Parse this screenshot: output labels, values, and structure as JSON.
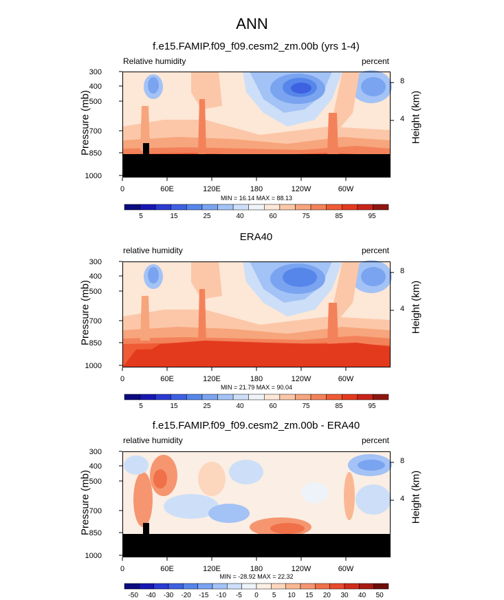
{
  "main_title": "ANN",
  "colors": {
    "rh": [
      "#0b0b7f",
      "#1717b3",
      "#2b3bd1",
      "#3d61e0",
      "#5686ea",
      "#7aa4f0",
      "#a3c2f6",
      "#cddff8",
      "#f0f4f8",
      "#fde7d6",
      "#fbc7a8",
      "#f7a57c",
      "#f3825a",
      "#ee5b35",
      "#e33a1e",
      "#c8241a",
      "#8d1710"
    ],
    "diff": [
      "#0b0b7f",
      "#1717b3",
      "#2b3bd1",
      "#3d61e0",
      "#5686ea",
      "#7aa4f0",
      "#a3c2f6",
      "#cddff8",
      "#eef3fa",
      "#fbeee4",
      "#fcd6bd",
      "#f9b893",
      "#f59670",
      "#ef7049",
      "#e74b2c",
      "#cf2d1c",
      "#a51b13",
      "#6b0e0a"
    ]
  },
  "chart_data": [
    {
      "type": "heatmap",
      "title": "f.e15.FAMIP.f09_f09.cesm2_zm.00b (yrs 1-4)",
      "left_label": "Relative humidity",
      "right_label": "percent",
      "ylabel": "Pressure (mb)",
      "ylabel_right": "Height (km)",
      "y_ticks": [
        "300",
        "400",
        "500",
        "700",
        "850",
        "1000"
      ],
      "y_right_ticks": [
        "8",
        "4"
      ],
      "x_ticks": [
        "0",
        "60E",
        "120E",
        "180",
        "120W",
        "60W"
      ],
      "stats": "MIN = 16.14  MAX = 88.13",
      "colorbar_labels": [
        "5",
        "15",
        "25",
        "40",
        "60",
        "75",
        "85",
        "95"
      ],
      "min": 16.14,
      "max": 88.13
    },
    {
      "type": "heatmap",
      "title": "ERA40",
      "left_label": "relative humidity",
      "right_label": "percent",
      "ylabel": "Pressure (mb)",
      "ylabel_right": "Height (km)",
      "y_ticks": [
        "300",
        "400",
        "500",
        "700",
        "850",
        "1000"
      ],
      "y_right_ticks": [
        "8",
        "4"
      ],
      "x_ticks": [
        "0",
        "60E",
        "120E",
        "180",
        "120W",
        "60W"
      ],
      "stats": "MIN = 21.79  MAX = 90.04",
      "colorbar_labels": [
        "5",
        "15",
        "25",
        "40",
        "60",
        "75",
        "85",
        "95"
      ],
      "min": 21.79,
      "max": 90.04
    },
    {
      "type": "heatmap",
      "title": "f.e15.FAMIP.f09_f09.cesm2_zm.00b - ERA40",
      "left_label": "relative humidity",
      "right_label": "percent",
      "ylabel": "Pressure (mb)",
      "ylabel_right": "Height (km)",
      "y_ticks": [
        "300",
        "400",
        "500",
        "700",
        "850",
        "1000"
      ],
      "y_right_ticks": [
        "8",
        "4"
      ],
      "x_ticks": [
        "0",
        "60E",
        "120E",
        "180",
        "120W",
        "60W"
      ],
      "stats": "MIN = -28.92  MAX = 22.32",
      "colorbar_labels": [
        "-50",
        "-40",
        "-30",
        "-20",
        "-15",
        "-10",
        "-5",
        "0",
        "5",
        "10",
        "15",
        "20",
        "30",
        "40",
        "50"
      ],
      "min": -28.92,
      "max": 22.32
    }
  ]
}
